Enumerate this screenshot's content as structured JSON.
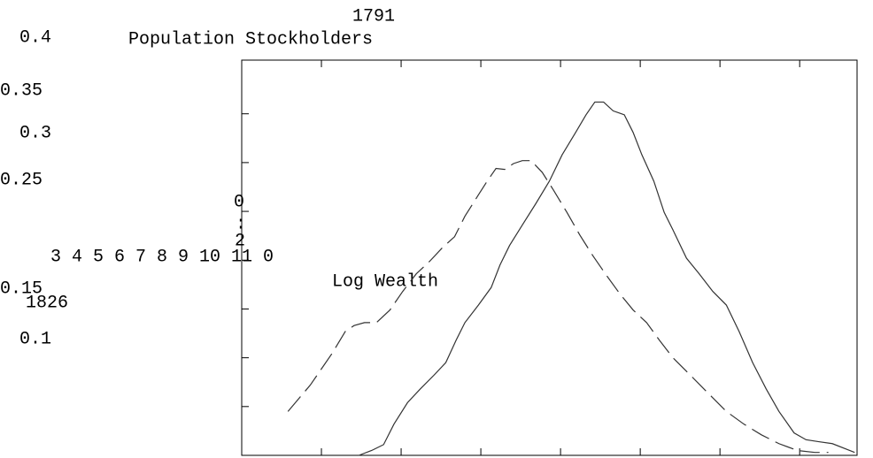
{
  "chart_data": {
    "type": "line",
    "annotations": [
      "1791",
      "0.4",
      "Population Stockholders",
      "0.35",
      "0.3",
      "0.25",
      "0",
      ":",
      "2",
      "3 4 5 6 7 8 9 10 11 0",
      "0.15",
      "1826",
      "0.1"
    ],
    "x_label": "Log Wealth",
    "xlim": [
      3,
      10.72
    ],
    "xticks": [
      4,
      5,
      6,
      7,
      8,
      9,
      10
    ],
    "ylim": [
      0,
      0.405
    ],
    "yticks": [
      0.05,
      0.1,
      0.15,
      0.2,
      0.25,
      0.3,
      0.35
    ],
    "series": [
      {
        "color": "#333333",
        "dashed": true,
        "x": [
          3.58,
          3.86,
          4.13,
          4.3,
          4.41,
          4.54,
          4.69,
          4.86,
          5.02,
          5.19,
          5.36,
          5.52,
          5.67,
          5.8,
          5.97,
          6.08,
          6.19,
          6.3,
          6.41,
          6.52,
          6.63,
          6.77,
          6.91,
          7.08,
          7.24,
          7.41,
          7.58,
          7.74,
          7.91,
          8.08,
          8.24,
          8.41,
          8.63,
          8.86,
          9.08,
          9.3,
          9.52,
          9.74,
          9.97,
          10.19,
          10.36
        ],
        "values": [
          0.045,
          0.072,
          0.104,
          0.127,
          0.133,
          0.136,
          0.136,
          0.149,
          0.168,
          0.186,
          0.199,
          0.213,
          0.224,
          0.245,
          0.267,
          0.281,
          0.294,
          0.293,
          0.299,
          0.302,
          0.302,
          0.29,
          0.272,
          0.249,
          0.226,
          0.204,
          0.184,
          0.166,
          0.149,
          0.136,
          0.118,
          0.1,
          0.082,
          0.063,
          0.045,
          0.032,
          0.021,
          0.012,
          0.005,
          0.003,
          0.003
        ]
      },
      {
        "color": "#333333",
        "dashed": false,
        "x": [
          4.47,
          4.63,
          4.78,
          4.91,
          5.08,
          5.24,
          5.41,
          5.56,
          5.69,
          5.8,
          5.97,
          6.13,
          6.24,
          6.36,
          6.52,
          6.69,
          6.86,
          7.02,
          7.19,
          7.32,
          7.43,
          7.54,
          7.66,
          7.8,
          7.91,
          8.02,
          8.17,
          8.3,
          8.41,
          8.58,
          8.74,
          8.91,
          9.08,
          9.24,
          9.41,
          9.58,
          9.74,
          9.93,
          10.08,
          10.24,
          10.41,
          10.69
        ],
        "values": [
          0,
          0.005,
          0.011,
          0.032,
          0.054,
          0.068,
          0.082,
          0.095,
          0.118,
          0.136,
          0.154,
          0.172,
          0.195,
          0.215,
          0.236,
          0.258,
          0.281,
          0.308,
          0.331,
          0.349,
          0.362,
          0.362,
          0.353,
          0.349,
          0.331,
          0.308,
          0.281,
          0.249,
          0.231,
          0.202,
          0.186,
          0.168,
          0.154,
          0.127,
          0.095,
          0.068,
          0.045,
          0.023,
          0.016,
          0.014,
          0.012,
          0.003
        ]
      }
    ]
  }
}
